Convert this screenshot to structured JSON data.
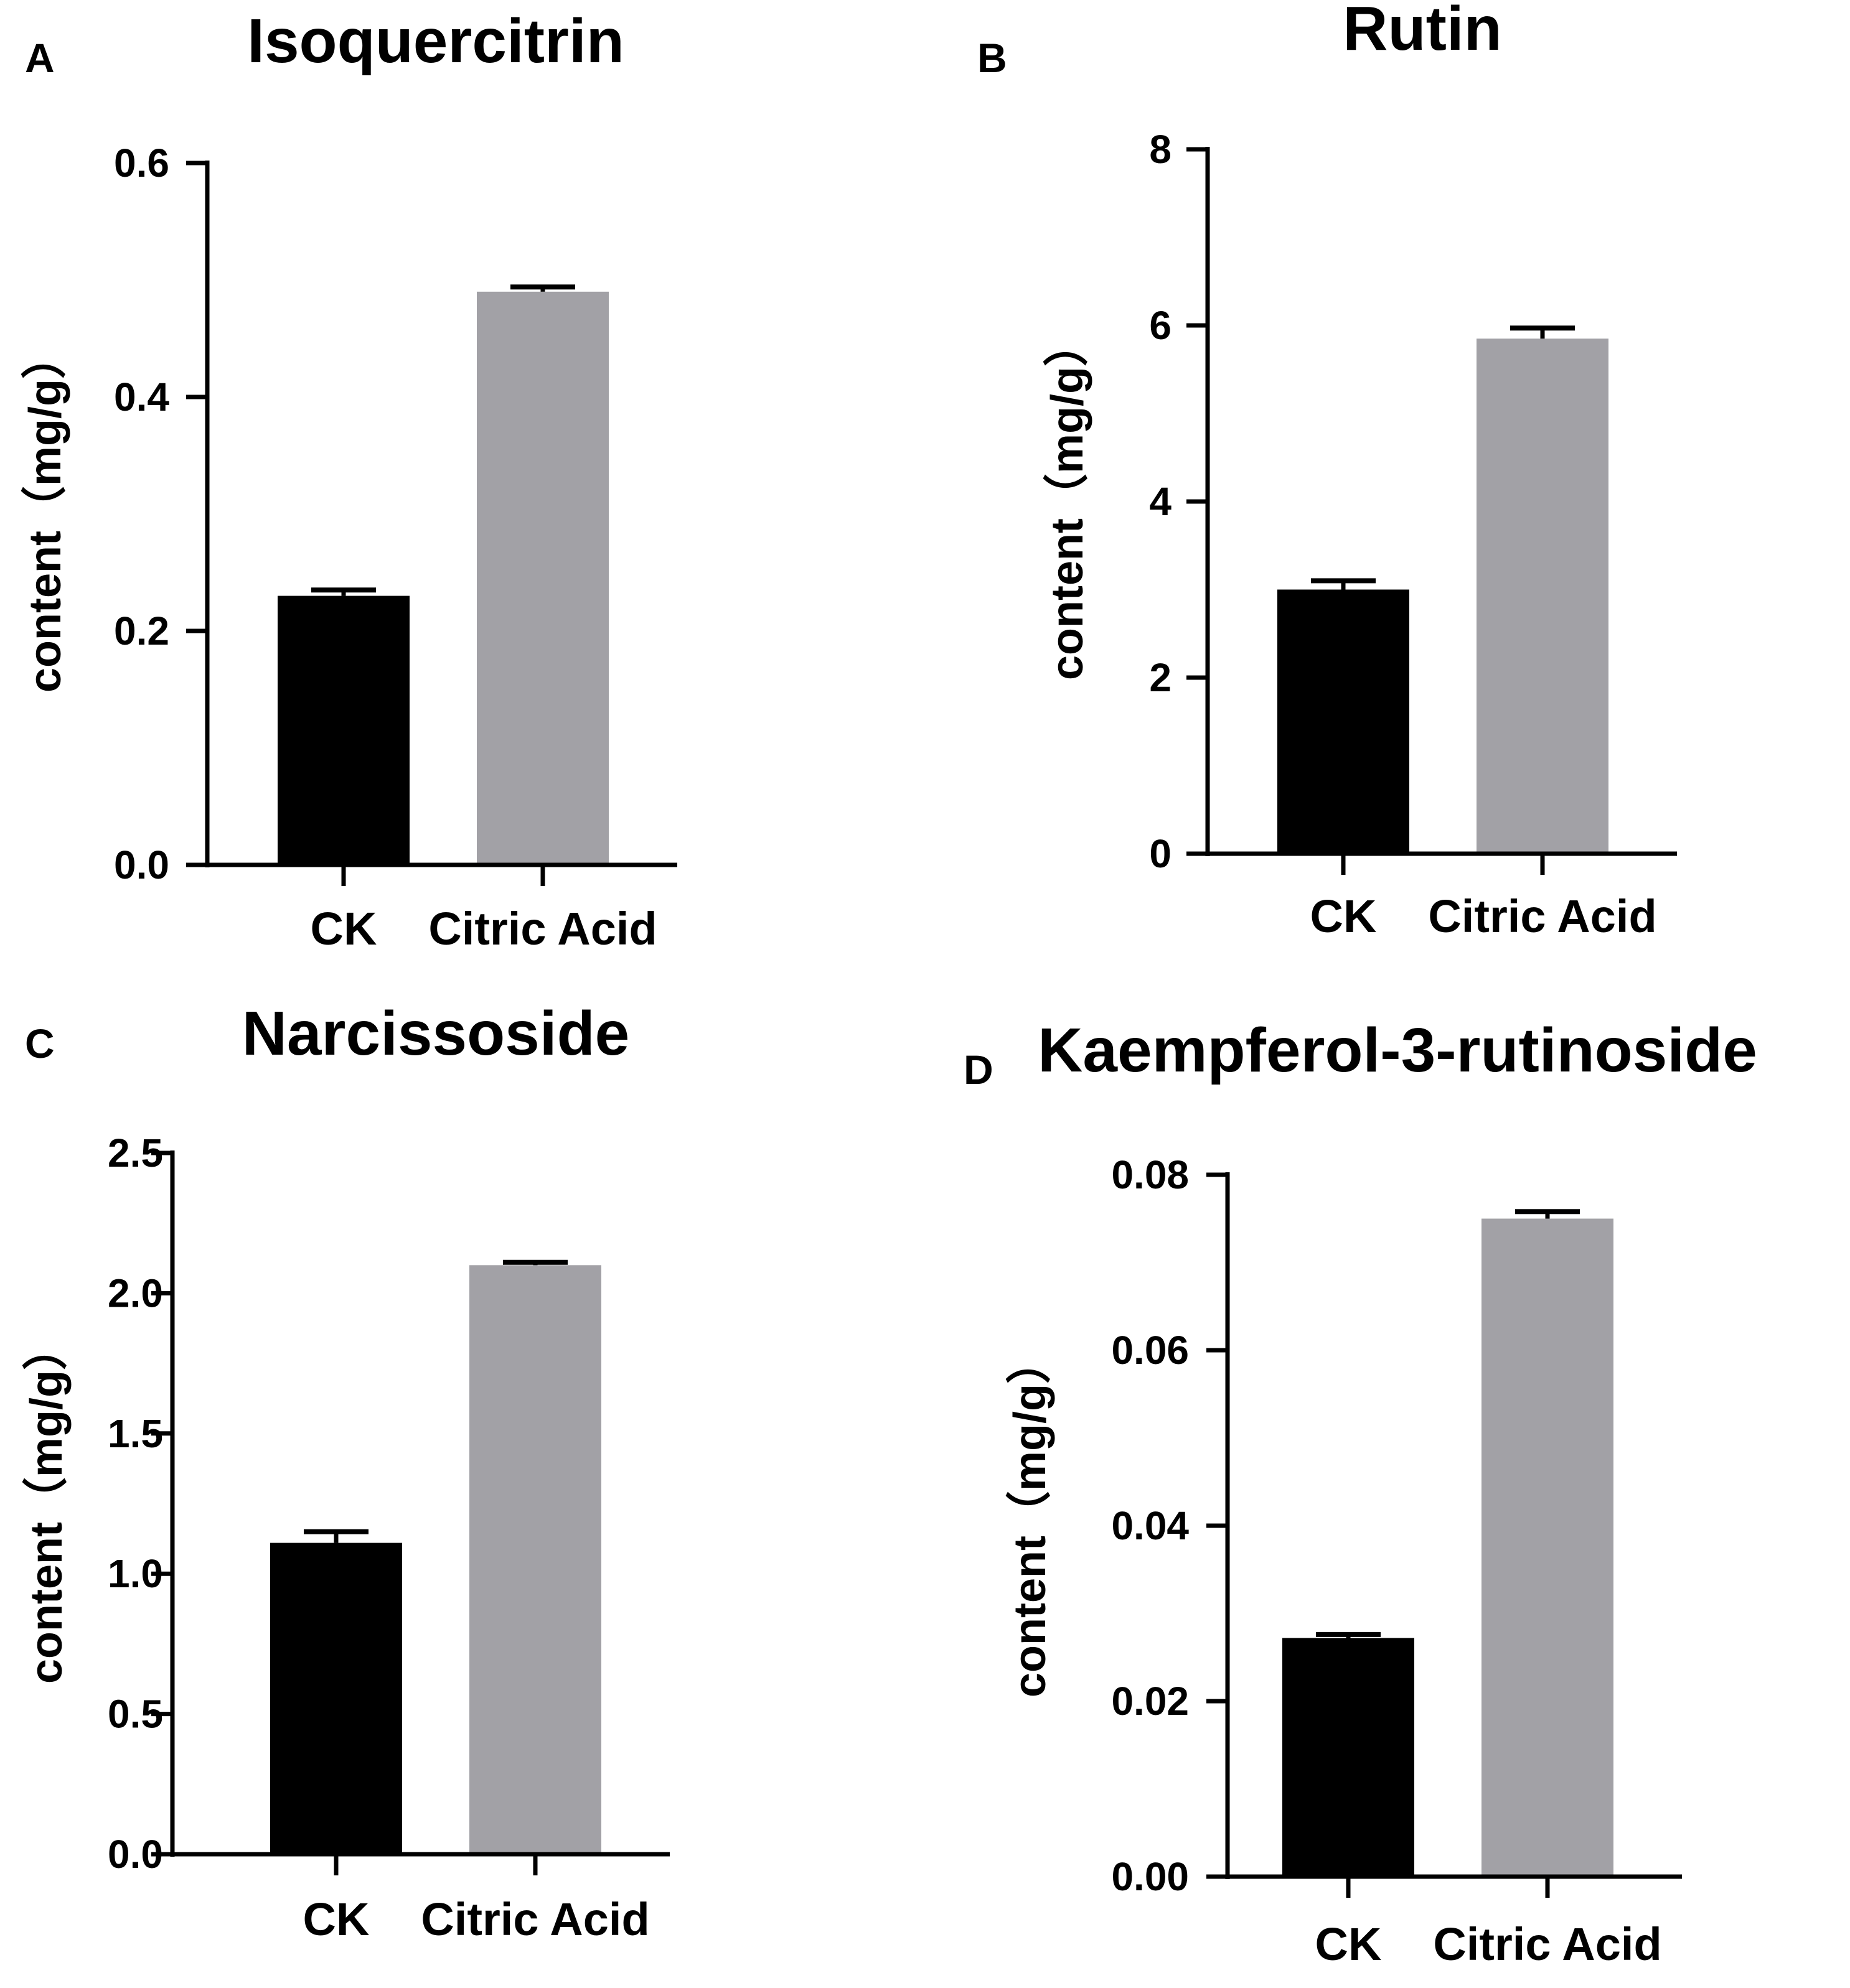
{
  "chart_data": [
    {
      "type": "bar",
      "panel": "A",
      "title": "Isoquercitrin",
      "ylabel": "content（mg/g）",
      "xlabel": "",
      "categories": [
        "CK",
        "Citric Acid"
      ],
      "values": [
        0.23,
        0.49
      ],
      "errors": [
        0.005,
        0.004
      ],
      "ylim": [
        0,
        0.6
      ],
      "ticks": [
        0.0,
        0.2,
        0.4,
        0.6
      ],
      "tick_labels": [
        "0.0",
        "0.2",
        "0.4",
        "0.6"
      ],
      "colors": [
        "#000000",
        "#a2a1a6"
      ]
    },
    {
      "type": "bar",
      "panel": "B",
      "title": "Rutin",
      "ylabel": "content（mg/g）",
      "xlabel": "",
      "categories": [
        "CK",
        "Citric Acid"
      ],
      "values": [
        3.0,
        5.85
      ],
      "errors": [
        0.1,
        0.12
      ],
      "ylim": [
        0,
        8
      ],
      "ticks": [
        0,
        2,
        4,
        6,
        8
      ],
      "tick_labels": [
        "0",
        "2",
        "4",
        "6",
        "8"
      ],
      "colors": [
        "#000000",
        "#a2a1a6"
      ]
    },
    {
      "type": "bar",
      "panel": "C",
      "title": "Narcissoside",
      "ylabel": "content（mg/g）",
      "xlabel": "",
      "categories": [
        "CK",
        "Citric Acid"
      ],
      "values": [
        1.11,
        2.1
      ],
      "errors": [
        0.04,
        0.01
      ],
      "ylim": [
        0,
        2.5
      ],
      "ticks": [
        0.0,
        0.5,
        1.0,
        1.5,
        2.0,
        2.5
      ],
      "tick_labels": [
        "0.0",
        "0.5",
        "1.0",
        "1.5",
        "2.0",
        "2.5"
      ],
      "colors": [
        "#000000",
        "#a2a1a6"
      ]
    },
    {
      "type": "bar",
      "panel": "D",
      "title": "Kaempferol-3-rutinoside",
      "ylabel": "content（mg/g）",
      "xlabel": "",
      "categories": [
        "CK",
        "Citric Acid"
      ],
      "values": [
        0.0272,
        0.075
      ],
      "errors": [
        0.0004,
        0.0008
      ],
      "ylim": [
        0,
        0.08
      ],
      "ticks": [
        0.0,
        0.02,
        0.04,
        0.06,
        0.08
      ],
      "tick_labels": [
        "0.00",
        "0.02",
        "0.04",
        "0.06",
        "0.08"
      ],
      "colors": [
        "#000000",
        "#a2a1a6"
      ]
    }
  ]
}
